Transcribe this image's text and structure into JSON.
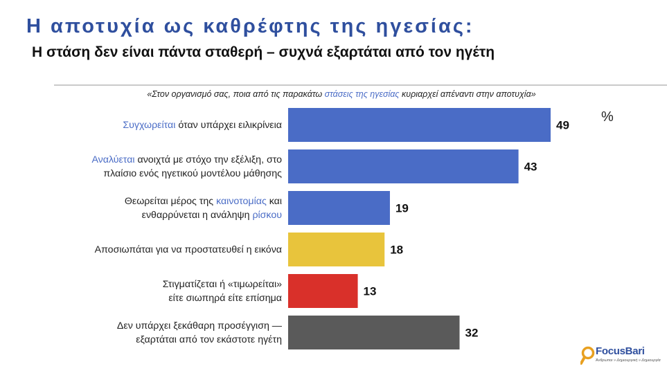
{
  "title": "Η αποτυχία ως καθρέφτης της ηγεσίας:",
  "subtitle": "Η στάση δεν είναι πάντα σταθερή – συχνά εξαρτάται από τον ηγέτη",
  "question": {
    "before": "«Στον οργανισμό σας, ποια από τις παρακάτω ",
    "highlight": "στάσεις  της ηγεσίας",
    "after": " κυριαρχεί απέναντι στην αποτυχία»"
  },
  "unit": "%",
  "rows": [
    {
      "line1": [
        {
          "t": "Συγχωρείται",
          "hl": true
        },
        {
          "t": " όταν υπάρχει ειλικρίνεια",
          "hl": false
        }
      ],
      "line2": []
    },
    {
      "line1": [
        {
          "t": "Αναλύεται",
          "hl": true
        },
        {
          "t": " ανοιχτά με στόχο την εξέλιξη, στο",
          "hl": false
        }
      ],
      "line2": [
        {
          "t": "πλαίσιο ενός ηγετικού μοντέλου μάθησης",
          "hl": false
        }
      ]
    },
    {
      "line1": [
        {
          "t": "Θεωρείται μέρος της ",
          "hl": false
        },
        {
          "t": "καινοτομίας",
          "hl": true
        },
        {
          "t": " και",
          "hl": false
        }
      ],
      "line2": [
        {
          "t": "ενθαρρύνεται η ανάληψη ",
          "hl": false
        },
        {
          "t": "ρίσκου",
          "hl": true
        }
      ]
    },
    {
      "line1": [
        {
          "t": "Αποσιωπάται για να προστατευθεί η εικόνα",
          "hl": false
        }
      ],
      "line2": []
    },
    {
      "line1": [
        {
          "t": "Στιγματίζεται ή «τιμωρείται»",
          "hl": false
        }
      ],
      "line2": [
        {
          "t": "είτε σιωπηρά είτε επίσημα",
          "hl": false
        }
      ]
    },
    {
      "line1": [
        {
          "t": "Δεν υπάρχει ξεκάθαρη προσέγγιση —",
          "hl": false
        }
      ],
      "line2": [
        {
          "t": "εξαρτάται από τον εκάστοτε ηγέτη",
          "hl": false
        }
      ]
    }
  ],
  "chart_data": {
    "type": "bar",
    "orientation": "horizontal",
    "categories": [
      "Συγχωρείται όταν υπάρχει ειλικρίνεια",
      "Αναλύεται ανοιχτά με στόχο την εξέλιξη, στο πλαίσιο ενός ηγετικού μοντέλου μάθησης",
      "Θεωρείται μέρος της καινοτομίας και ενθαρρύνεται η ανάληψη ρίσκου",
      "Αποσιωπάται για να προστατευθεί η εικόνα",
      "Στιγματίζεται ή «τιμωρείται» είτε σιωπηρά είτε επίσημα",
      "Δεν υπάρχει ξεκάθαρη προσέγγιση — εξαρτάται από τον εκάστοτε ηγέτη"
    ],
    "values": [
      49,
      43,
      19,
      18,
      13,
      32
    ],
    "colors": [
      "#4a6cc6",
      "#4a6cc6",
      "#4a6cc6",
      "#e8c43c",
      "#d9302a",
      "#5a5a5a"
    ],
    "data_labels": [
      "49",
      "43",
      "19",
      "18",
      "13",
      "32"
    ],
    "unit": "%",
    "xlim": [
      0,
      49
    ],
    "grid": false,
    "legend": "none"
  },
  "logo": {
    "name": "FocusBari",
    "tagline": "Άνθρωποι » Δημιουργική » Δημιουργία",
    "colors": {
      "ring": "#e8a020",
      "text": "#2f4f9e"
    }
  }
}
